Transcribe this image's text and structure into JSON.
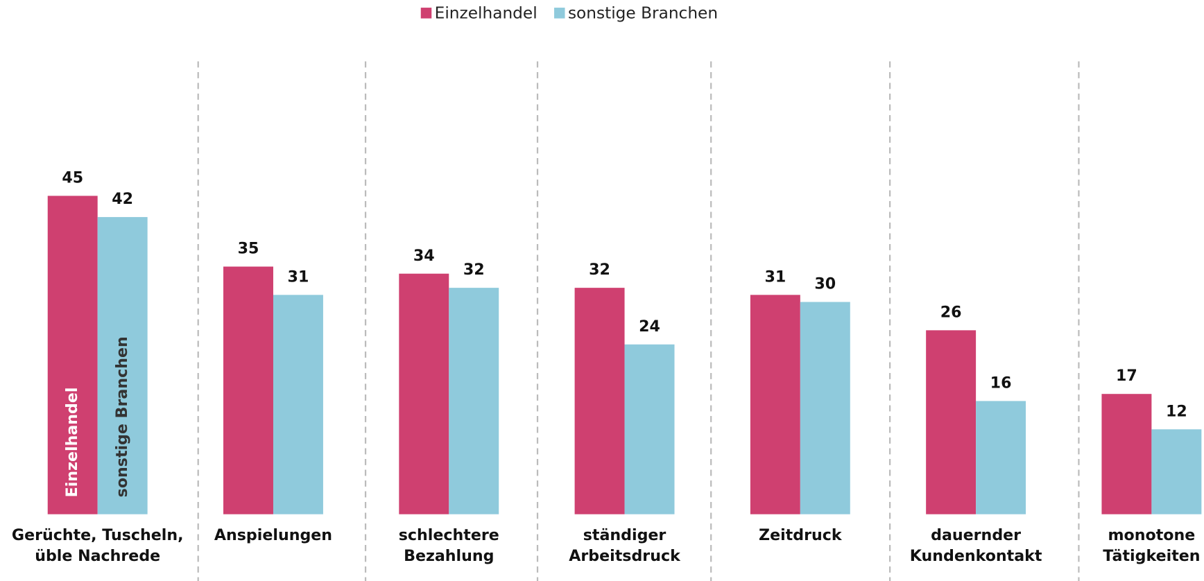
{
  "chart_data": {
    "type": "bar",
    "categories": [
      [
        "Gerüchte, Tuscheln,",
        "üble Nachrede"
      ],
      [
        "Anspielungen"
      ],
      [
        "schlechtere",
        "Bezahlung"
      ],
      [
        "ständiger",
        "Arbeitsdruck"
      ],
      [
        "Zeitdruck"
      ],
      [
        "dauernder",
        "Kundenkontakt"
      ],
      [
        "monotone",
        "Tätigkeiten"
      ]
    ],
    "series": [
      {
        "name": "Einzelhandel",
        "color": "#cf4070",
        "values": [
          45,
          35,
          34,
          32,
          31,
          26,
          17
        ]
      },
      {
        "name": "sonstige Branchen",
        "color": "#8fcadc",
        "values": [
          42,
          31,
          32,
          24,
          30,
          16,
          12
        ]
      }
    ],
    "ylim": [
      0,
      64
    ],
    "legend": "top"
  }
}
